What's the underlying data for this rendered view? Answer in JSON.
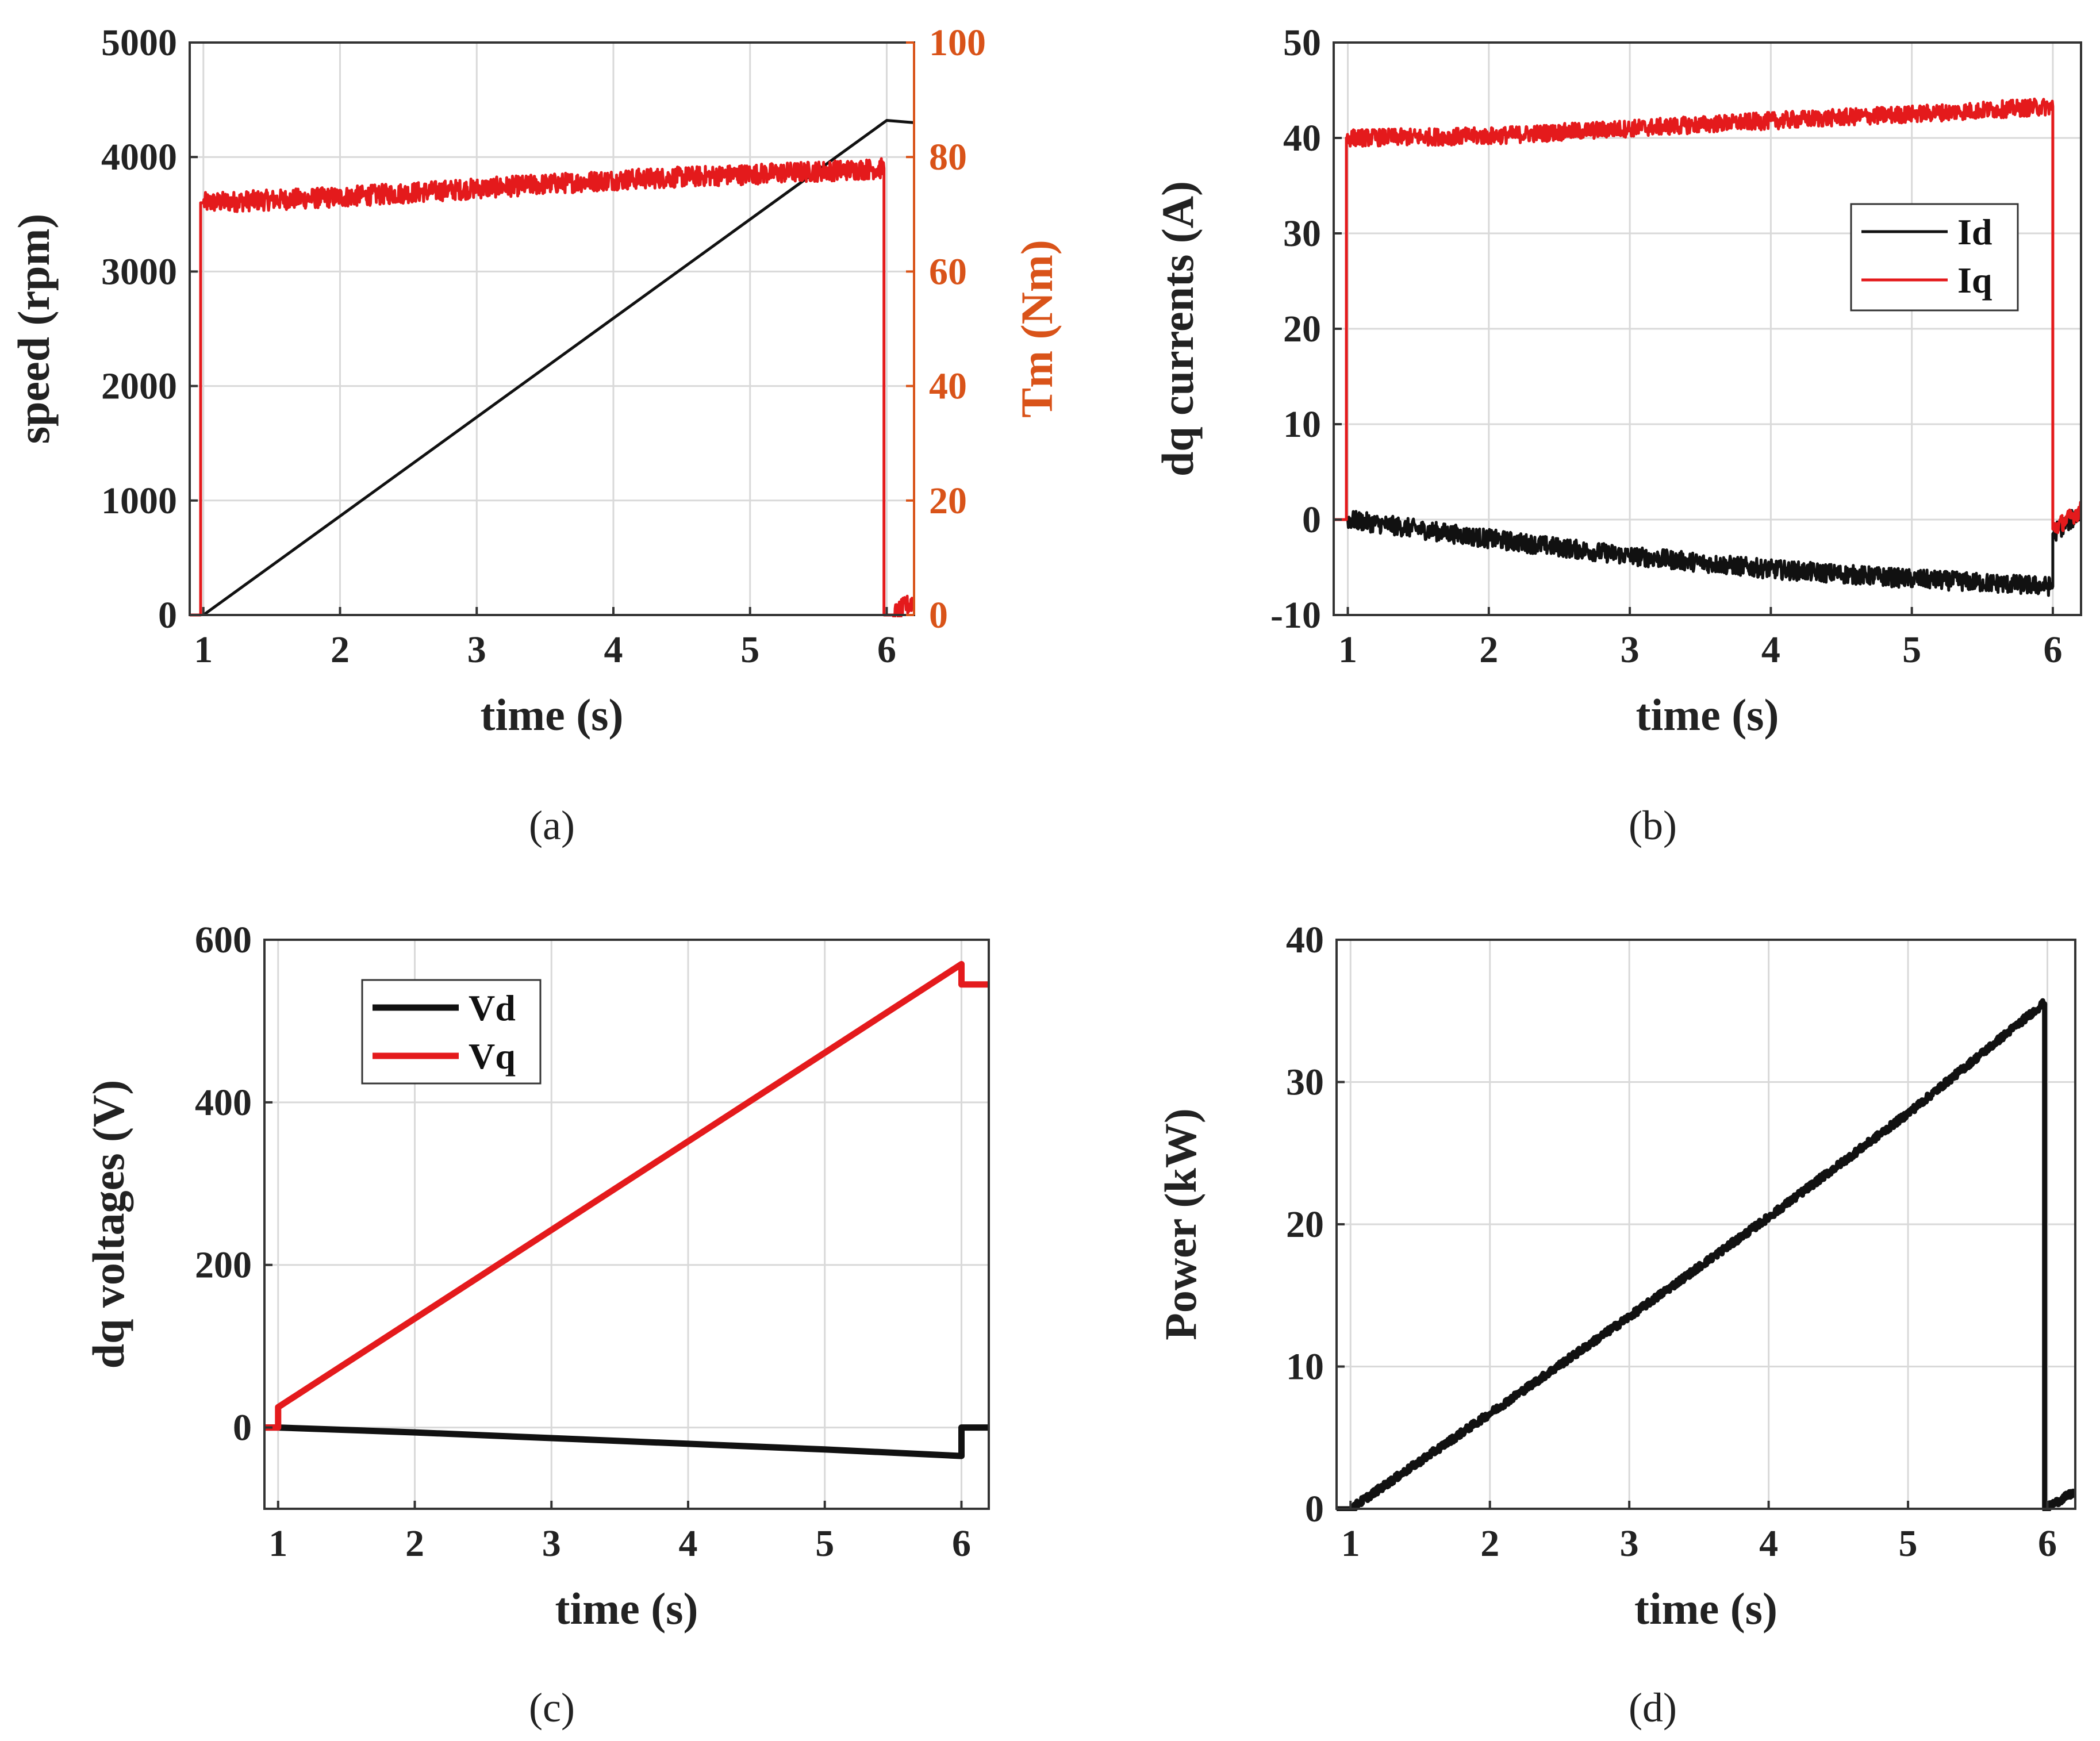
{
  "colors": {
    "black": "#111111",
    "red": "#e41a1c",
    "orange": "#d95319",
    "grid": "#d9d9d9",
    "axis": "#333333"
  },
  "chart_data": [
    {
      "panel_label": "(a)",
      "type": "line",
      "xlabel": "time (s)",
      "ylabel": "speed (rpm)",
      "ylabel_right": "Tm (Nm)",
      "xlim": [
        0.9,
        6.2
      ],
      "ylim": [
        0,
        5000
      ],
      "ylim_right": [
        0,
        100
      ],
      "xticks": [
        1,
        2,
        3,
        4,
        5,
        6
      ],
      "xtick_labels": [
        "1",
        "2",
        "3",
        "4",
        "5",
        "6"
      ],
      "yticks": [
        0,
        1000,
        2000,
        3000,
        4000,
        5000
      ],
      "ytick_labels": [
        "0",
        "1000",
        "2000",
        "3000",
        "4000",
        "5000"
      ],
      "yticks_right": [
        0,
        20,
        40,
        60,
        80,
        100
      ],
      "ytick_labels_right": [
        "0",
        "20",
        "40",
        "60",
        "80",
        "100"
      ],
      "grid": true,
      "series": [
        {
          "name": "speed",
          "axis": "left",
          "color": "#111111",
          "x": [
            1.0,
            6.0,
            6.2
          ],
          "y": [
            0,
            4320,
            4300
          ]
        },
        {
          "name": "Tm",
          "axis": "right",
          "color": "#e41a1c",
          "noise": 1.8,
          "x": [
            0.9,
            0.98,
            0.98,
            1.0,
            1.0,
            2.0,
            3.0,
            4.0,
            5.0,
            5.98,
            5.98,
            6.05,
            6.05,
            6.2
          ],
          "y": [
            0,
            0,
            72,
            72,
            72,
            73,
            74.5,
            76,
            77,
            78,
            0,
            0,
            0,
            2.5
          ]
        }
      ]
    },
    {
      "panel_label": "(b)",
      "type": "line",
      "xlabel": "time (s)",
      "ylabel": "dq currents (A)",
      "xlim": [
        0.9,
        6.2
      ],
      "ylim": [
        -10,
        50
      ],
      "xticks": [
        1,
        2,
        3,
        4,
        5,
        6
      ],
      "xtick_labels": [
        "1",
        "2",
        "3",
        "4",
        "5",
        "6"
      ],
      "yticks": [
        -10,
        0,
        10,
        20,
        30,
        40,
        50
      ],
      "ytick_labels": [
        "-10",
        "0",
        "10",
        "20",
        "30",
        "40",
        "50"
      ],
      "grid": true,
      "legend": {
        "entries": [
          "Id",
          "Iq"
        ],
        "placement": "center-right"
      },
      "series": [
        {
          "name": "Id",
          "color": "#111111",
          "noise": 1.0,
          "x": [
            0.9,
            1.0,
            2.0,
            3.0,
            4.0,
            5.0,
            6.0,
            6.0,
            6.2
          ],
          "y": [
            0,
            0,
            -2,
            -3.8,
            -5.2,
            -6.2,
            -7,
            -1.5,
            0.8
          ]
        },
        {
          "name": "Iq",
          "color": "#e41a1c",
          "noise": 0.9,
          "x": [
            0.9,
            0.99,
            0.99,
            2.0,
            3.0,
            4.0,
            5.0,
            6.0,
            6.0,
            6.2
          ],
          "y": [
            0,
            0,
            40,
            40.2,
            41,
            41.8,
            42.5,
            43.3,
            -1,
            1
          ]
        }
      ]
    },
    {
      "panel_label": "(c)",
      "type": "line",
      "xlabel": "time (s)",
      "ylabel": "dq voltages (V)",
      "xlim": [
        0.9,
        6.2
      ],
      "ylim": [
        -100,
        600
      ],
      "xticks": [
        1,
        2,
        3,
        4,
        5,
        6
      ],
      "xtick_labels": [
        "1",
        "2",
        "3",
        "4",
        "5",
        "6"
      ],
      "yticks": [
        0,
        200,
        400,
        600
      ],
      "ytick_labels": [
        "0",
        "200",
        "400",
        "600"
      ],
      "grid": true,
      "legend": {
        "entries": [
          "Vd",
          "Vq"
        ],
        "placement": "top-left"
      },
      "series": [
        {
          "name": "Vd",
          "color": "#111111",
          "x": [
            0.9,
            1.0,
            2.0,
            3.0,
            4.0,
            5.0,
            6.0,
            6.0,
            6.2
          ],
          "y": [
            0,
            0,
            -6,
            -13,
            -20,
            -27,
            -35,
            0,
            0
          ]
        },
        {
          "name": "Vq",
          "color": "#e41a1c",
          "x": [
            0.9,
            1.0,
            1.0,
            6.0,
            6.0,
            6.2
          ],
          "y": [
            0,
            0,
            25,
            570,
            545,
            545
          ]
        }
      ]
    },
    {
      "panel_label": "(d)",
      "type": "line",
      "xlabel": "time (s)",
      "ylabel": "Power (kW)",
      "xlim": [
        0.9,
        6.2
      ],
      "ylim": [
        0,
        40
      ],
      "xticks": [
        1,
        2,
        3,
        4,
        5,
        6
      ],
      "xtick_labels": [
        "1",
        "2",
        "3",
        "4",
        "5",
        "6"
      ],
      "yticks": [
        0,
        10,
        20,
        30,
        40
      ],
      "ytick_labels": [
        "0",
        "10",
        "20",
        "30",
        "40"
      ],
      "grid": true,
      "series": [
        {
          "name": "Power",
          "color": "#111111",
          "noise": 0.25,
          "x": [
            0.9,
            1.0,
            2.0,
            3.0,
            4.0,
            5.0,
            5.97,
            5.98,
            5.98,
            6.2
          ],
          "y": [
            0,
            0,
            6.7,
            13.5,
            20.5,
            27.8,
            35.5,
            35.5,
            0,
            1.2
          ]
        }
      ]
    }
  ]
}
